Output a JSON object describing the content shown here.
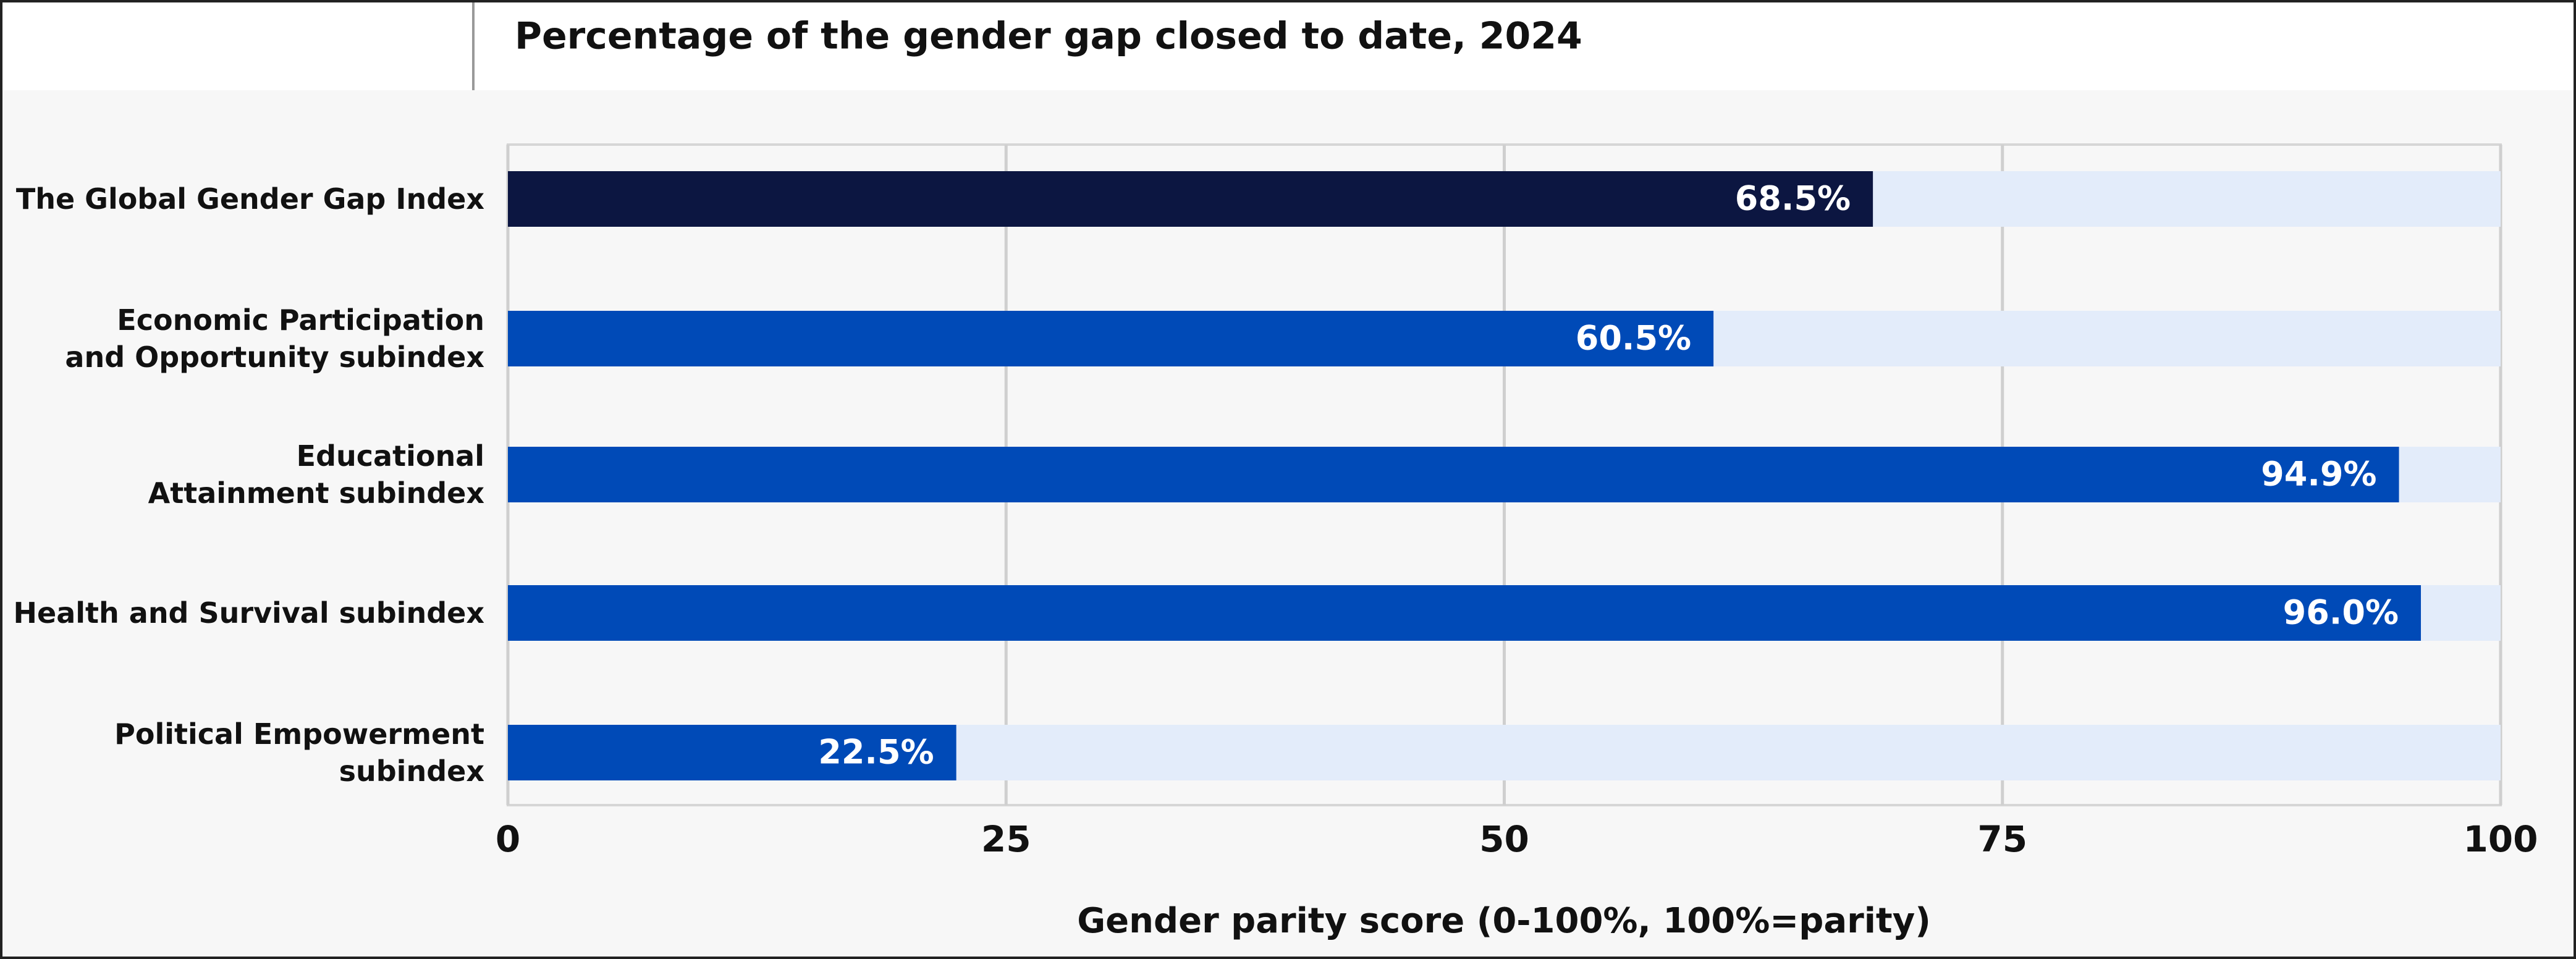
{
  "chart_data": {
    "type": "bar",
    "orientation": "horizontal",
    "title": "Percentage of the gender gap closed to date, 2024",
    "x_label": "Gender parity score (0-100%, 100%=parity)",
    "categories": [
      "The Global Gender Gap Index",
      "Economic Participation\nand Opportunity subindex",
      "Educational\nAttainment subindex",
      "Health and Survival subindex",
      "Political Empowerment\nsubindex"
    ],
    "values": [
      68.5,
      60.5,
      94.9,
      96.0,
      22.5
    ],
    "value_labels": [
      "68.5%",
      "60.5%",
      "94.9%",
      "96.0%",
      "22.5%"
    ],
    "colors": [
      "#0c1641",
      "#004ab7",
      "#004ab7",
      "#004ab7",
      "#004ab7"
    ],
    "track_color": "#e3ecfa",
    "xlim": [
      0,
      100
    ],
    "xticks": [
      0,
      25,
      50,
      75,
      100
    ],
    "grid": true
  }
}
